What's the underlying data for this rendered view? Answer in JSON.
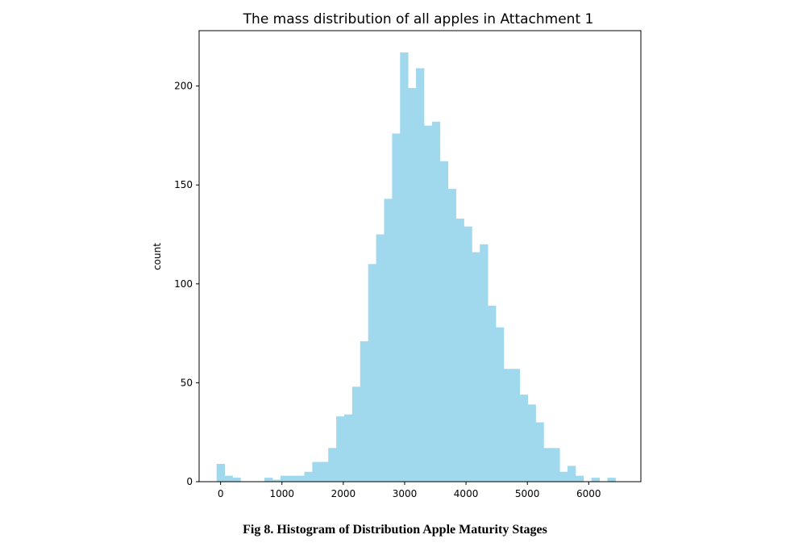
{
  "chart_data": {
    "type": "bar",
    "title": "The mass distribution of all apples in Attachment 1",
    "xlabel": "",
    "ylabel": "count",
    "xlim": [
      -350,
      6850
    ],
    "ylim": [
      0,
      228
    ],
    "xticks": [
      0,
      1000,
      2000,
      3000,
      4000,
      5000,
      6000
    ],
    "yticks": [
      0,
      50,
      100,
      150,
      200
    ],
    "bar_color": "#a0d8ee",
    "grid": false,
    "bin_width": 130,
    "bins": [
      {
        "x": 0,
        "count": 9
      },
      {
        "x": 130,
        "count": 3
      },
      {
        "x": 260,
        "count": 2
      },
      {
        "x": 390,
        "count": 0
      },
      {
        "x": 520,
        "count": 0
      },
      {
        "x": 650,
        "count": 0
      },
      {
        "x": 780,
        "count": 2
      },
      {
        "x": 910,
        "count": 1
      },
      {
        "x": 1040,
        "count": 3
      },
      {
        "x": 1170,
        "count": 3
      },
      {
        "x": 1300,
        "count": 3
      },
      {
        "x": 1430,
        "count": 5
      },
      {
        "x": 1560,
        "count": 10
      },
      {
        "x": 1690,
        "count": 10
      },
      {
        "x": 1820,
        "count": 17
      },
      {
        "x": 1950,
        "count": 33
      },
      {
        "x": 2080,
        "count": 34
      },
      {
        "x": 2210,
        "count": 48
      },
      {
        "x": 2340,
        "count": 71
      },
      {
        "x": 2470,
        "count": 110
      },
      {
        "x": 2600,
        "count": 125
      },
      {
        "x": 2730,
        "count": 143
      },
      {
        "x": 2860,
        "count": 176
      },
      {
        "x": 2990,
        "count": 217
      },
      {
        "x": 3120,
        "count": 199
      },
      {
        "x": 3250,
        "count": 209
      },
      {
        "x": 3380,
        "count": 180
      },
      {
        "x": 3510,
        "count": 182
      },
      {
        "x": 3640,
        "count": 162
      },
      {
        "x": 3770,
        "count": 148
      },
      {
        "x": 3900,
        "count": 133
      },
      {
        "x": 4030,
        "count": 129
      },
      {
        "x": 4160,
        "count": 116
      },
      {
        "x": 4290,
        "count": 120
      },
      {
        "x": 4420,
        "count": 89
      },
      {
        "x": 4550,
        "count": 78
      },
      {
        "x": 4680,
        "count": 57
      },
      {
        "x": 4810,
        "count": 57
      },
      {
        "x": 4940,
        "count": 44
      },
      {
        "x": 5070,
        "count": 39
      },
      {
        "x": 5200,
        "count": 30
      },
      {
        "x": 5330,
        "count": 17
      },
      {
        "x": 5460,
        "count": 17
      },
      {
        "x": 5590,
        "count": 5
      },
      {
        "x": 5720,
        "count": 8
      },
      {
        "x": 5850,
        "count": 3
      },
      {
        "x": 5980,
        "count": 0
      },
      {
        "x": 6110,
        "count": 2
      },
      {
        "x": 6240,
        "count": 0
      },
      {
        "x": 6370,
        "count": 2
      }
    ]
  },
  "caption": "Fig 8.  Histogram of Distribution Apple Maturity Stages"
}
